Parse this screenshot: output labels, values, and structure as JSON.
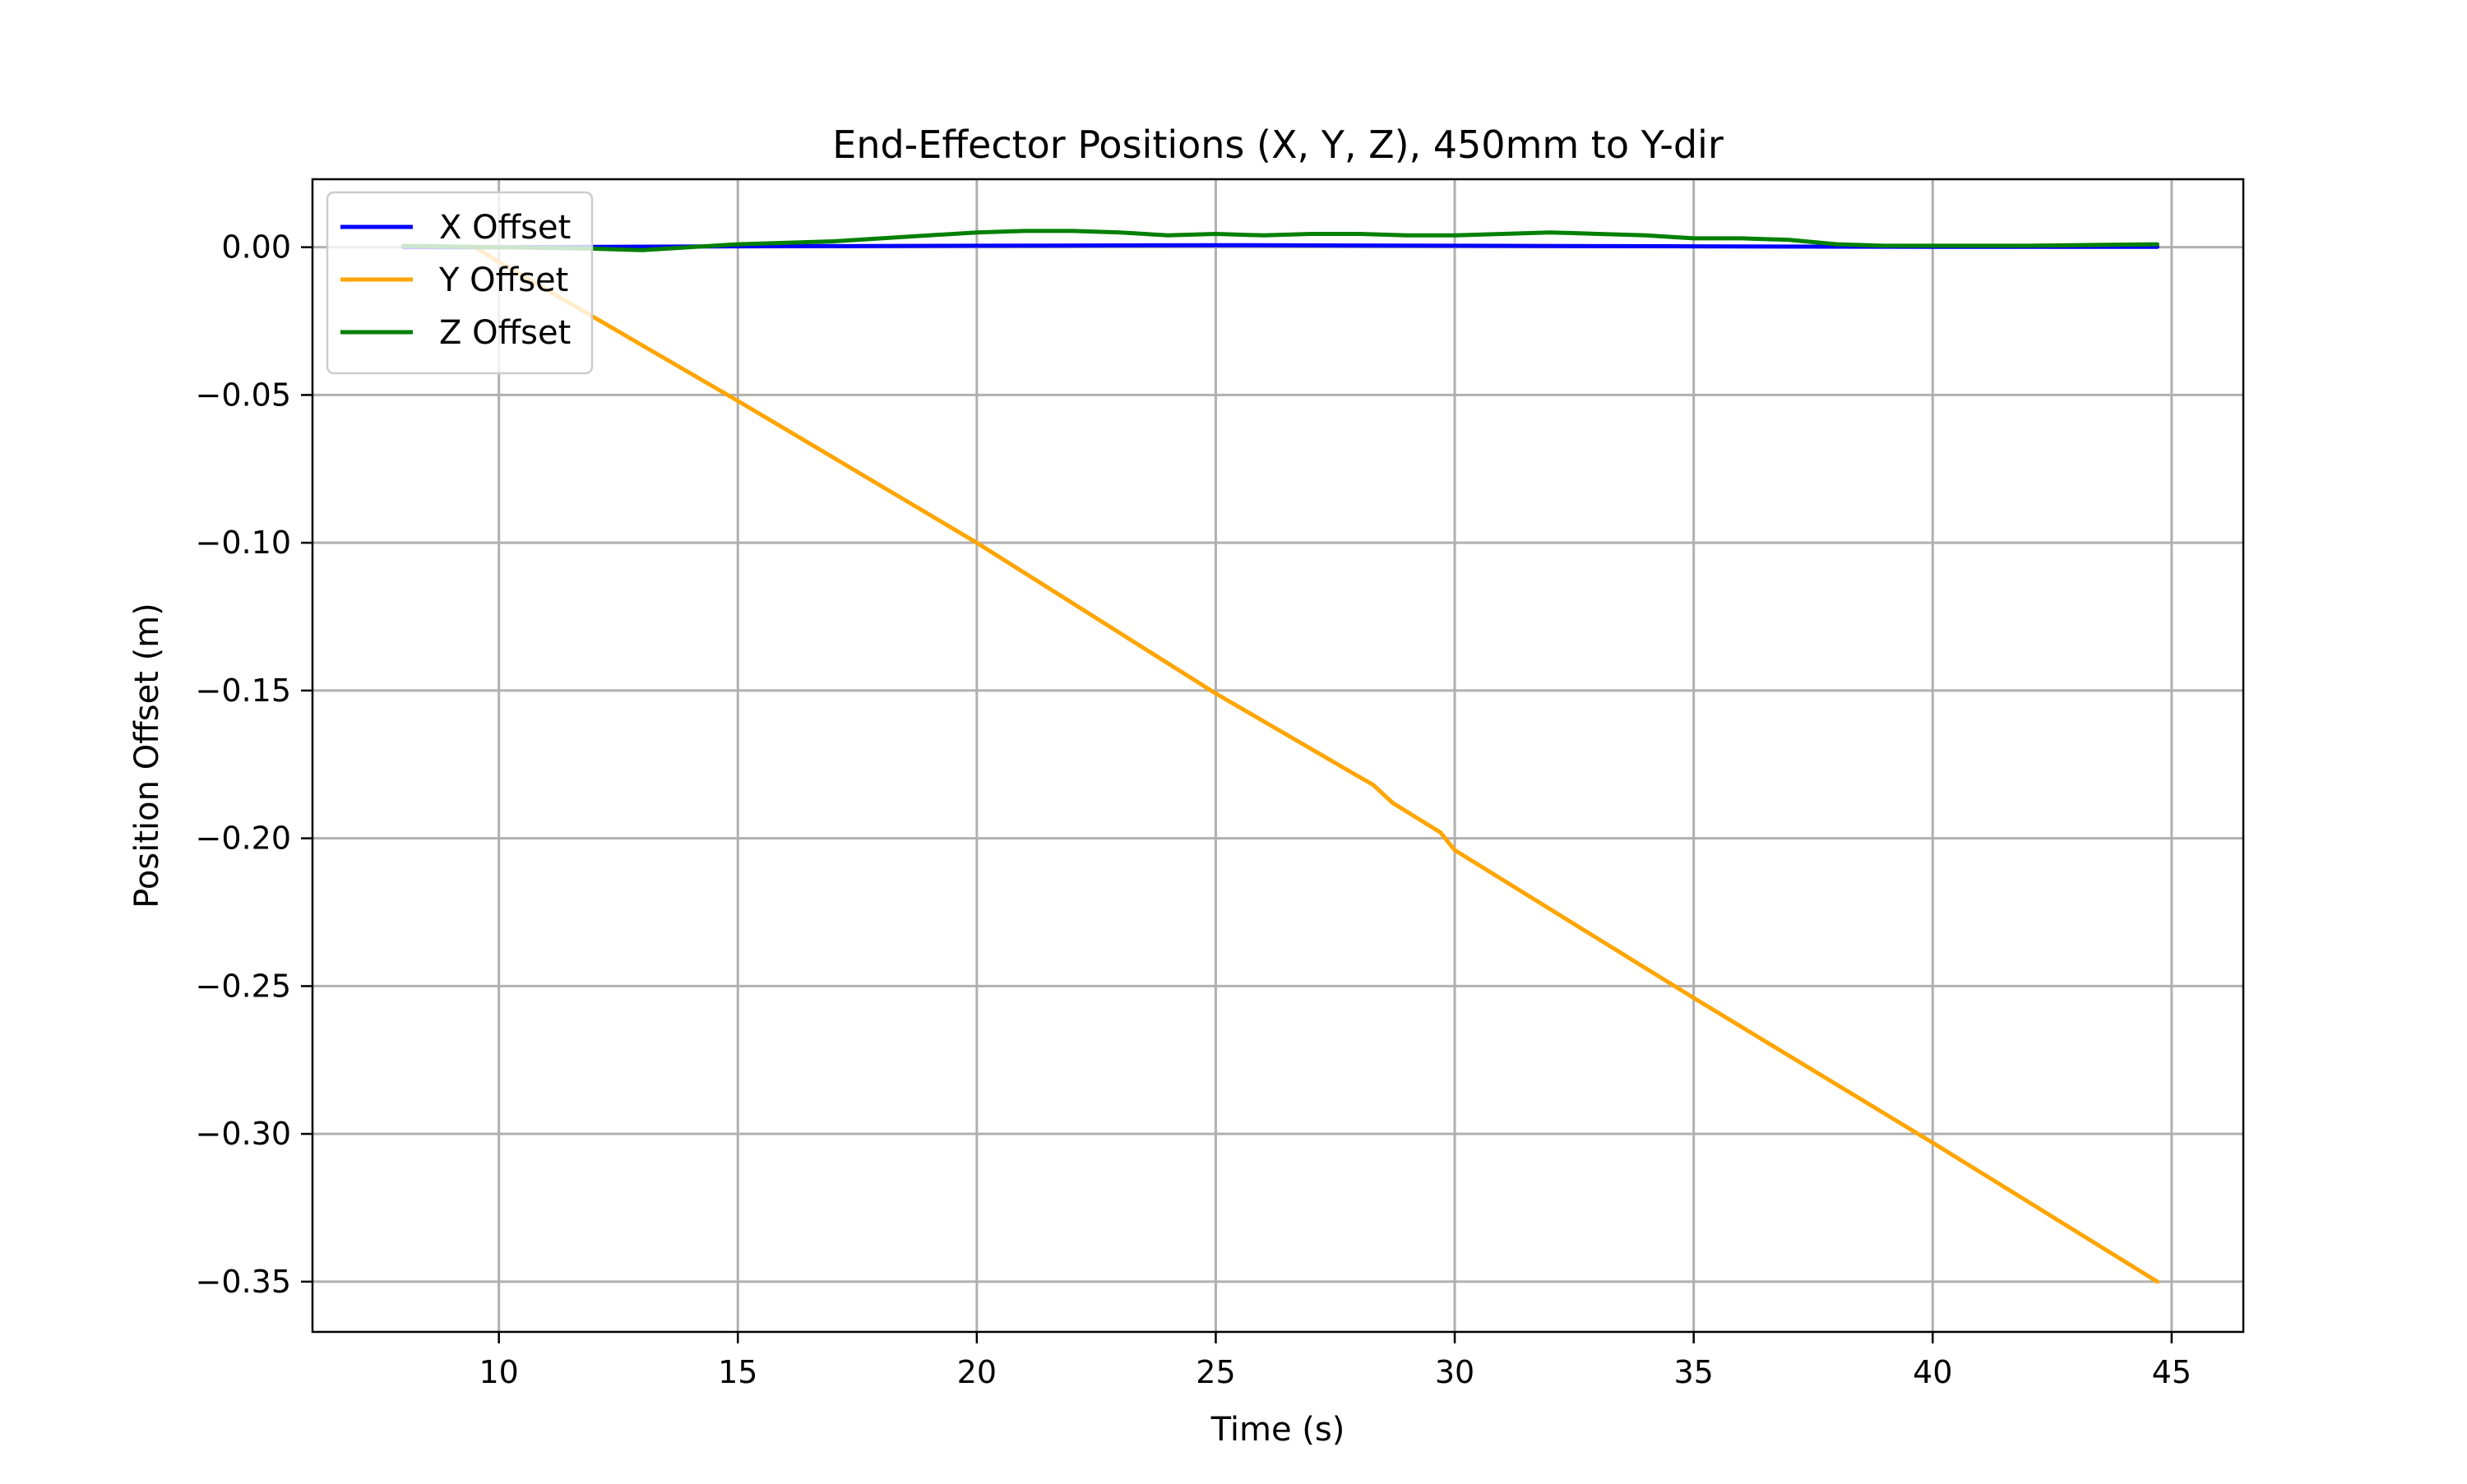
{
  "chart_data": {
    "type": "line",
    "title": "End-Effector Positions (X, Y, Z), 450mm to Y-dir",
    "xlabel": "Time (s)",
    "ylabel": "Position Offset (m)",
    "xlim": [
      6.1,
      46.5
    ],
    "ylim": [
      -0.367,
      0.023
    ],
    "xticks": [
      10,
      15,
      20,
      25,
      30,
      35,
      40,
      45
    ],
    "xtick_labels": [
      "10",
      "15",
      "20",
      "25",
      "30",
      "35",
      "40",
      "45"
    ],
    "yticks": [
      0.0,
      -0.05,
      -0.1,
      -0.15,
      -0.2,
      -0.25,
      -0.3,
      -0.35
    ],
    "ytick_labels": [
      "0.00",
      "−0.05",
      "−0.10",
      "−0.15",
      "−0.20",
      "−0.25",
      "−0.30",
      "−0.35"
    ],
    "grid": true,
    "legend_position": "upper-left",
    "series": [
      {
        "name": "X Offset",
        "color": "#0000ff",
        "x": [
          8.0,
          10,
          15,
          20,
          25,
          30,
          35,
          40,
          44.7
        ],
        "y": [
          0.0,
          0.0,
          0.0003,
          0.0005,
          0.0007,
          0.0005,
          0.0003,
          0.0001,
          0.0001
        ]
      },
      {
        "name": "Y Offset",
        "color": "#ffa500",
        "x": [
          8.0,
          9.5,
          10,
          15,
          20,
          25,
          28.3,
          28.7,
          29.7,
          30.0,
          35,
          40,
          44.7
        ],
        "y": [
          0.0,
          0.0,
          -0.005,
          -0.052,
          -0.1,
          -0.151,
          -0.182,
          -0.188,
          -0.198,
          -0.204,
          -0.254,
          -0.303,
          -0.35
        ]
      },
      {
        "name": "Z Offset",
        "color": "#008000",
        "x": [
          8.0,
          10,
          12,
          13,
          15,
          17,
          19,
          20,
          21,
          22,
          23,
          24,
          25,
          26,
          27,
          28,
          29,
          30,
          31,
          32,
          33,
          34,
          35,
          36,
          37,
          38,
          39,
          40,
          42,
          44.7
        ],
        "y": [
          0.0005,
          0.0,
          -0.0005,
          -0.001,
          0.001,
          0.002,
          0.004,
          0.005,
          0.0055,
          0.0055,
          0.005,
          0.004,
          0.0045,
          0.004,
          0.0045,
          0.0045,
          0.004,
          0.004,
          0.0045,
          0.005,
          0.0045,
          0.004,
          0.003,
          0.003,
          0.0025,
          0.001,
          0.0005,
          0.0005,
          0.0005,
          0.001
        ]
      }
    ]
  }
}
